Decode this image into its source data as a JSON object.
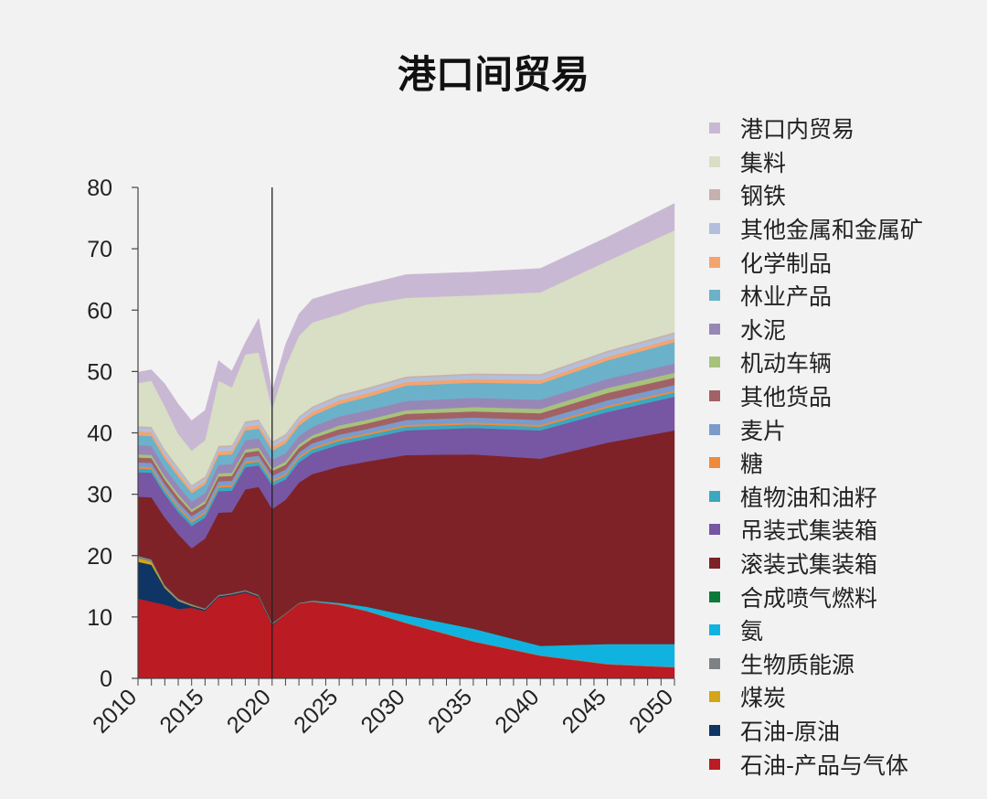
{
  "chart_data": {
    "type": "area",
    "stacked": true,
    "title": "港口间贸易",
    "xlabel": "",
    "ylabel": "",
    "xlim": [
      2010,
      2050
    ],
    "ylim": [
      0,
      80
    ],
    "yticks": [
      0,
      10,
      20,
      30,
      40,
      50,
      60,
      70,
      80
    ],
    "xticks": [
      2010,
      2015,
      2020,
      2025,
      2030,
      2035,
      2040,
      2045,
      2050
    ],
    "divider_x": 2020,
    "x": [
      2010,
      2011,
      2012,
      2013,
      2014,
      2015,
      2016,
      2017,
      2018,
      2019,
      2020,
      2021,
      2022,
      2023,
      2025,
      2027,
      2030,
      2035,
      2040,
      2045,
      2050
    ],
    "series": [
      {
        "name": "石油-产品与气体",
        "color": "#bb1b22",
        "values": [
          13,
          12.5,
          12,
          11.3,
          11.5,
          11,
          13.2,
          13.5,
          14,
          13.2,
          8.6,
          10.5,
          12.2,
          12.5,
          12,
          11,
          9,
          6,
          3.7,
          2.3,
          1.8
        ]
      },
      {
        "name": "石油-原油",
        "color": "#0e3564",
        "values": [
          6,
          6,
          2.7,
          1.3,
          0.3,
          0.2,
          0.2,
          0.2,
          0.2,
          0.2,
          0.2,
          0,
          0,
          0,
          0,
          0,
          0,
          0,
          0,
          0,
          0
        ]
      },
      {
        "name": "煤炭",
        "color": "#d4a514",
        "values": [
          0.6,
          0.5,
          0.2,
          0.1,
          0.1,
          0,
          0,
          0,
          0,
          0,
          0,
          0,
          0,
          0,
          0,
          0,
          0,
          0,
          0,
          0,
          0
        ]
      },
      {
        "name": "生物质能源",
        "color": "#7f8284",
        "values": [
          0.4,
          0.4,
          0.3,
          0.3,
          0.2,
          0.2,
          0.2,
          0.2,
          0.2,
          0.2,
          0.2,
          0.1,
          0.1,
          0.1,
          0.1,
          0.1,
          0.1,
          0.1,
          0.1,
          0.1,
          0.1
        ]
      },
      {
        "name": "氨",
        "color": "#10b3e0",
        "values": [
          0,
          0,
          0,
          0,
          0,
          0,
          0,
          0,
          0,
          0,
          0,
          0,
          0,
          0.1,
          0.2,
          0.6,
          1.2,
          2,
          1.5,
          3.2,
          3.7
        ]
      },
      {
        "name": "合成喷气燃料",
        "color": "#0d7a3a",
        "values": [
          0,
          0,
          0,
          0,
          0,
          0,
          0,
          0,
          0,
          0,
          0,
          0,
          0,
          0,
          0,
          0,
          0,
          0,
          0,
          0,
          0
        ]
      },
      {
        "name": "滚装式集装箱",
        "color": "#7e2228",
        "values": [
          9.6,
          10.1,
          11,
          10.5,
          9.1,
          11.4,
          13.4,
          13.2,
          16.4,
          17.6,
          18.6,
          18.5,
          19.6,
          20.6,
          22.2,
          23.6,
          26.1,
          28.4,
          30.5,
          32.8,
          34.8
        ]
      },
      {
        "name": "吊装式集装箱",
        "color": "#7756a4",
        "values": [
          4,
          4,
          3.8,
          3.6,
          3.6,
          3.4,
          3.5,
          3.5,
          3.6,
          3.5,
          3.8,
          3.3,
          3.3,
          3.4,
          3.6,
          3.7,
          4,
          4.3,
          4.6,
          5,
          5.5
        ]
      },
      {
        "name": "植物油和油籽",
        "color": "#3aa9bf",
        "values": [
          0.6,
          0.6,
          0.6,
          0.6,
          0.6,
          0.6,
          0.6,
          0.6,
          0.6,
          0.6,
          0.6,
          0.6,
          0.6,
          0.6,
          0.6,
          0.6,
          0.6,
          0.6,
          0.6,
          0.7,
          0.7
        ]
      },
      {
        "name": "糖",
        "color": "#ef8a3c",
        "values": [
          0.3,
          0.3,
          0.3,
          0.3,
          0.3,
          0.3,
          0.3,
          0.3,
          0.3,
          0.3,
          0.3,
          0.3,
          0.3,
          0.3,
          0.3,
          0.3,
          0.3,
          0.3,
          0.3,
          0.3,
          0.3
        ]
      },
      {
        "name": "麦片",
        "color": "#7a9bcc",
        "values": [
          0.7,
          0.7,
          0.7,
          0.7,
          0.7,
          0.7,
          0.7,
          0.7,
          0.7,
          0.7,
          0.7,
          0.7,
          0.7,
          0.7,
          0.7,
          0.7,
          0.8,
          0.8,
          0.8,
          0.9,
          0.9
        ]
      },
      {
        "name": "其他货品",
        "color": "#a26165",
        "values": [
          0.8,
          0.8,
          0.8,
          0.8,
          0.7,
          0.7,
          0.8,
          0.8,
          0.8,
          0.8,
          0.8,
          0.8,
          0.8,
          0.8,
          0.9,
          0.9,
          1,
          1,
          1.1,
          1.2,
          1.2
        ]
      },
      {
        "name": "机动车辆",
        "color": "#a7c27a",
        "values": [
          0.5,
          0.5,
          0.5,
          0.5,
          0.4,
          0.4,
          0.5,
          0.5,
          0.5,
          0.5,
          0.4,
          0.5,
          0.5,
          0.5,
          0.6,
          0.6,
          0.6,
          0.7,
          0.7,
          0.8,
          0.8
        ]
      },
      {
        "name": "水泥",
        "color": "#9787b6",
        "values": [
          1.5,
          1.5,
          1.4,
          1.4,
          1.3,
          1.3,
          1.4,
          1.4,
          1.5,
          1.5,
          1.4,
          1.4,
          1.4,
          1.4,
          1.5,
          1.5,
          1.5,
          1.5,
          1.5,
          1.5,
          1.5
        ]
      },
      {
        "name": "林业产品",
        "color": "#6bb1ca",
        "values": [
          1.6,
          1.6,
          1.5,
          1.5,
          1.4,
          1.4,
          1.6,
          1.6,
          1.6,
          1.6,
          1.5,
          1.6,
          1.7,
          1.8,
          2,
          2.2,
          2.5,
          2.5,
          2.6,
          3,
          3.5
        ]
      },
      {
        "name": "化学制品",
        "color": "#f4a46f",
        "values": [
          0.6,
          0.6,
          0.6,
          0.6,
          0.5,
          0.5,
          0.6,
          0.6,
          0.6,
          0.6,
          0.6,
          0.6,
          0.6,
          0.6,
          0.6,
          0.6,
          0.6,
          0.6,
          0.6,
          0.6,
          0.6
        ]
      },
      {
        "name": "其他金属和金属矿",
        "color": "#b2bfdc",
        "values": [
          0.6,
          0.6,
          0.6,
          0.6,
          0.5,
          0.5,
          0.6,
          0.6,
          0.6,
          0.6,
          0.6,
          0.6,
          0.6,
          0.6,
          0.6,
          0.6,
          0.6,
          0.6,
          0.7,
          0.7,
          0.7
        ]
      },
      {
        "name": "钢铁",
        "color": "#c7b1ae",
        "values": [
          0.3,
          0.3,
          0.3,
          0.3,
          0.3,
          0.3,
          0.3,
          0.3,
          0.3,
          0.3,
          0.3,
          0.3,
          0.3,
          0.3,
          0.3,
          0.3,
          0.3,
          0.3,
          0.3,
          0.3,
          0.3
        ]
      },
      {
        "name": "集料",
        "color": "#d8dfc4",
        "values": [
          7,
          7.5,
          7,
          5.4,
          5.6,
          5.9,
          10.6,
          9.4,
          10.9,
          10.9,
          5.3,
          11,
          13.1,
          13.7,
          13.1,
          13.6,
          12.8,
          12.7,
          13.3,
          14.6,
          16.6
        ]
      },
      {
        "name": "港口内贸易",
        "color": "#c9b8d3",
        "values": [
          1.8,
          1.8,
          3.7,
          4.9,
          4.9,
          4.9,
          3.3,
          2.7,
          1.9,
          5.6,
          2.9,
          3.6,
          3.6,
          3.8,
          3.8,
          3.3,
          3.8,
          3.8,
          3.9,
          3.9,
          4.4
        ]
      }
    ],
    "legend_position": "right"
  }
}
